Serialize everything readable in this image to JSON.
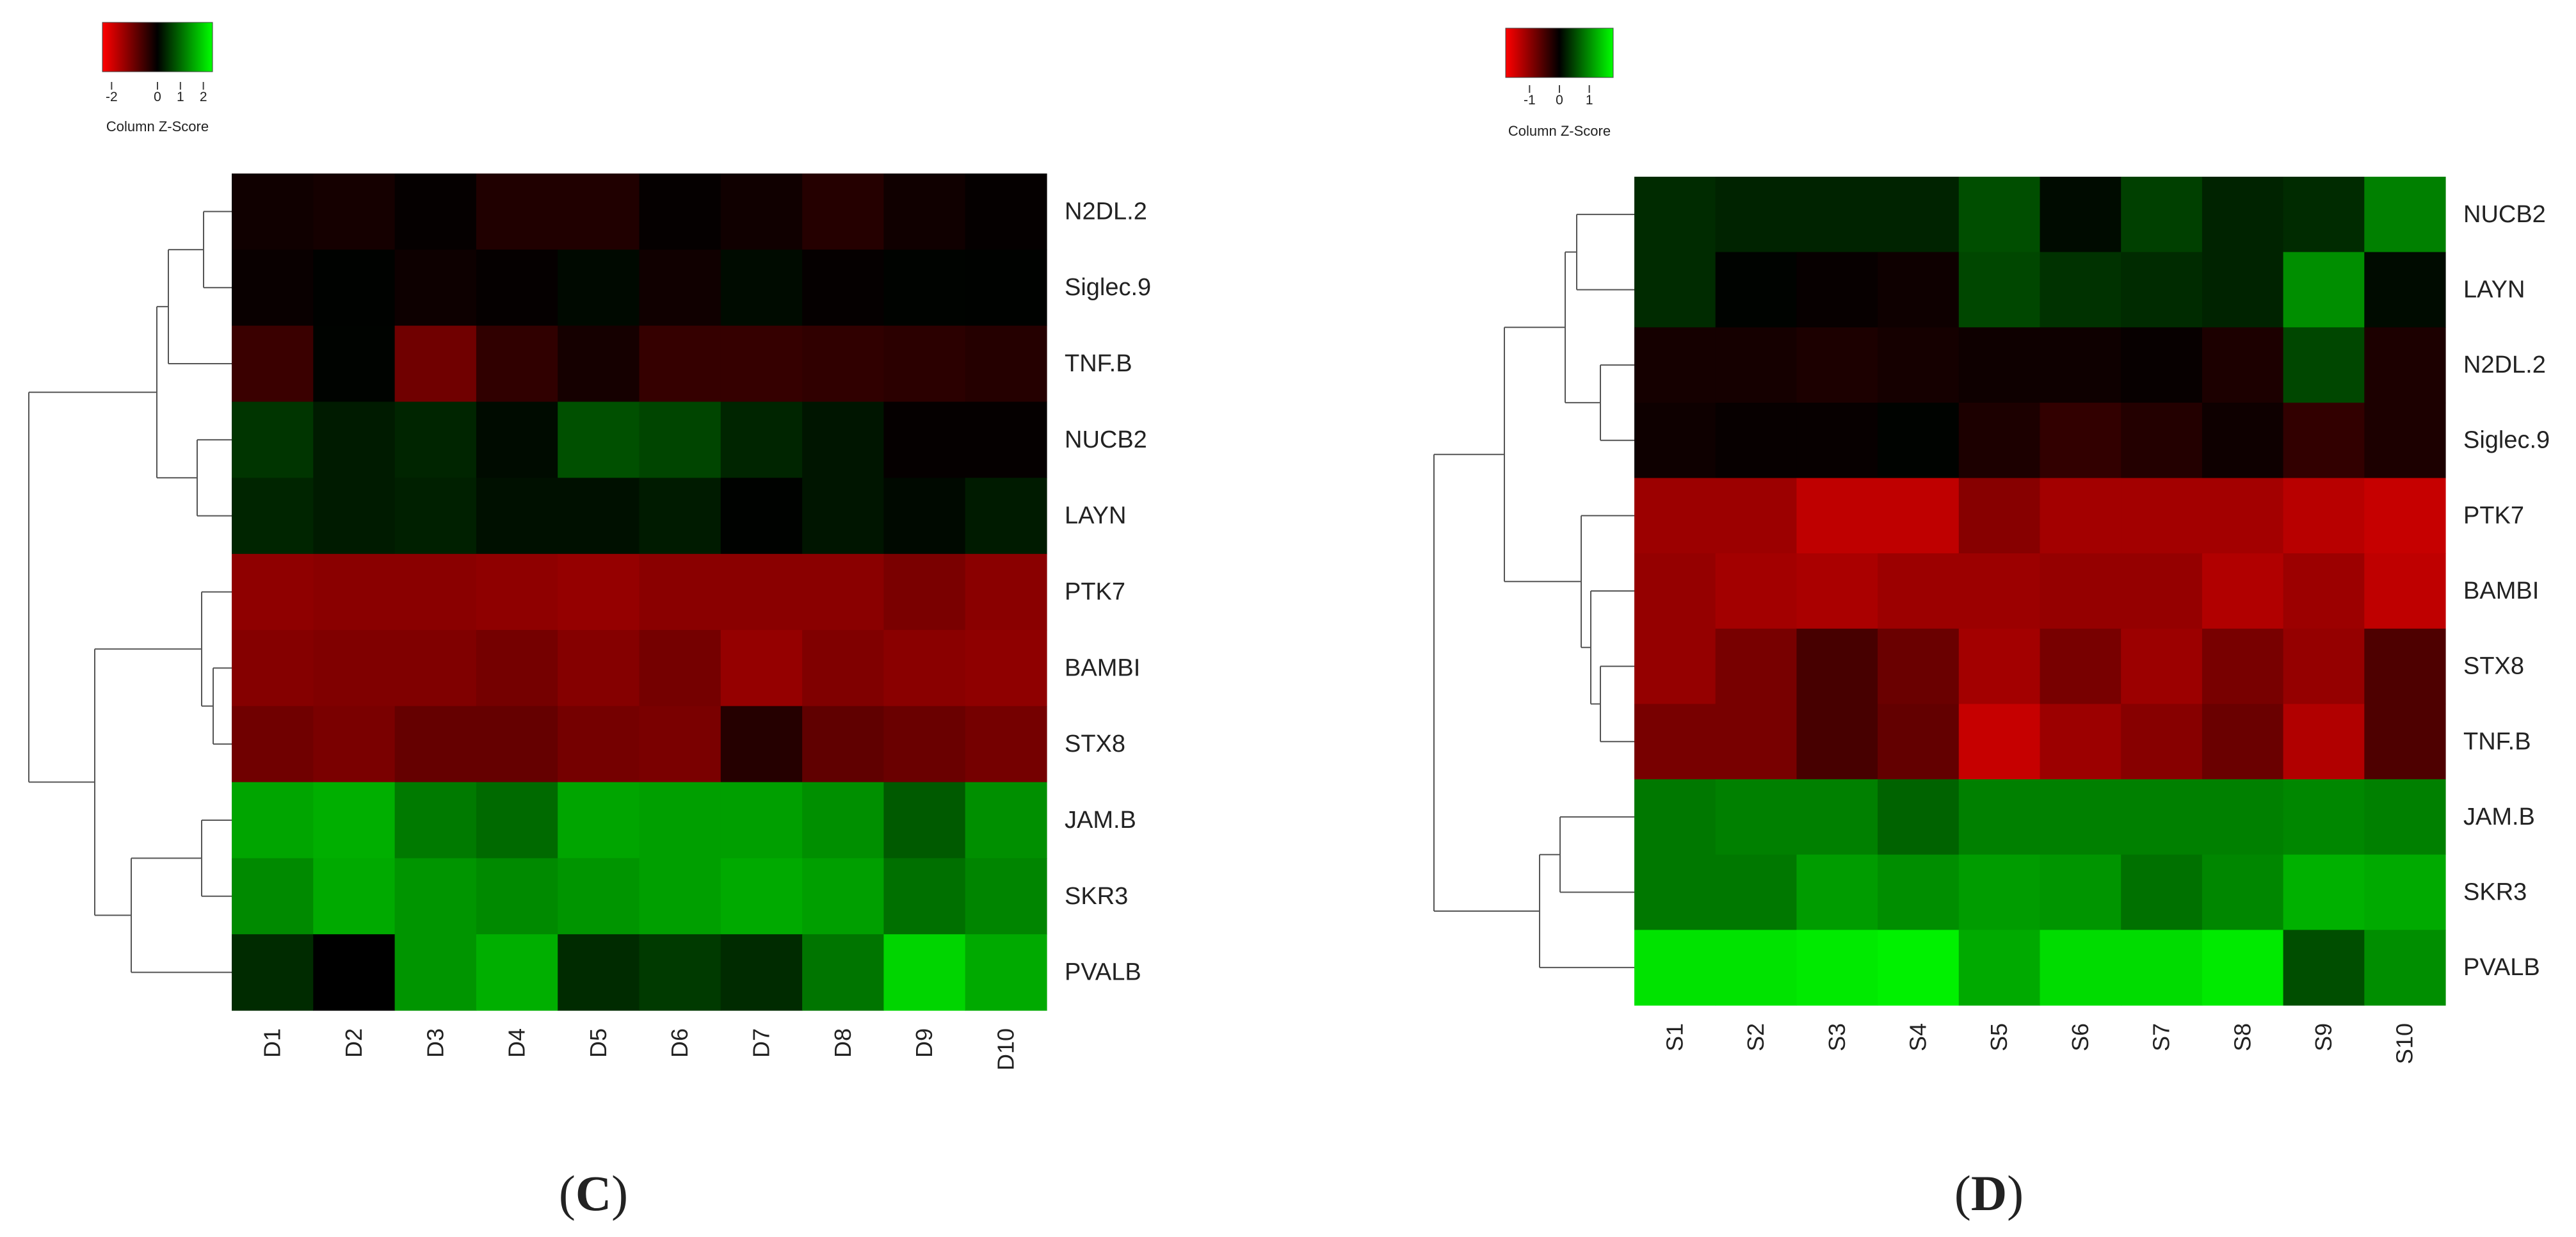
{
  "chart_data": [
    {
      "type": "heatmap",
      "panel_label": "C",
      "colorscale": {
        "low": "#ff0000",
        "mid": "#000000",
        "high": "#00ff00"
      },
      "legend": {
        "title": "Column Z-Score",
        "ticks": [
          "-2",
          "0",
          "1",
          "2"
        ],
        "range": [
          -2.4,
          2.4
        ],
        "tick_values": [
          -2,
          0,
          1,
          2
        ],
        "placement": "top-left"
      },
      "columns": [
        "D1",
        "D2",
        "D3",
        "D4",
        "D5",
        "D6",
        "D7",
        "D8",
        "D9",
        "D10"
      ],
      "rows": [
        "N2DL.2",
        "Siglec.9",
        "TNF.B",
        "NUCB2",
        "LAYN",
        "PTK7",
        "BAMBI",
        "STX8",
        "JAM.B",
        "SKR3",
        "PVALB"
      ],
      "values": [
        [
          -0.15,
          -0.2,
          -0.05,
          -0.3,
          -0.3,
          -0.05,
          -0.15,
          -0.35,
          -0.15,
          -0.05
        ],
        [
          -0.08,
          0.02,
          -0.12,
          -0.05,
          0.08,
          -0.15,
          0.1,
          -0.05,
          0.03,
          0.02
        ],
        [
          -0.55,
          0.03,
          -1.05,
          -0.45,
          -0.2,
          -0.5,
          -0.5,
          -0.45,
          -0.4,
          -0.35
        ],
        [
          0.5,
          0.25,
          0.35,
          0.1,
          0.75,
          0.65,
          0.35,
          0.2,
          -0.05,
          -0.05
        ],
        [
          0.35,
          0.25,
          0.3,
          0.15,
          0.15,
          0.25,
          0.02,
          0.2,
          0.08,
          0.25
        ],
        [
          -1.35,
          -1.3,
          -1.3,
          -1.35,
          -1.4,
          -1.3,
          -1.3,
          -1.3,
          -1.15,
          -1.3
        ],
        [
          -1.25,
          -1.2,
          -1.2,
          -1.1,
          -1.25,
          -1.1,
          -1.4,
          -1.2,
          -1.3,
          -1.35
        ],
        [
          -1.05,
          -1.15,
          -0.95,
          -0.95,
          -1.1,
          -1.15,
          -0.35,
          -0.9,
          -1.0,
          -1.1
        ],
        [
          1.55,
          1.65,
          1.15,
          1.0,
          1.55,
          1.5,
          1.5,
          1.35,
          0.85,
          1.35
        ],
        [
          1.3,
          1.6,
          1.4,
          1.3,
          1.4,
          1.5,
          1.6,
          1.5,
          1.05,
          1.25
        ],
        [
          0.4,
          0.0,
          1.4,
          1.65,
          0.4,
          0.55,
          0.4,
          1.1,
          2.0,
          1.6
        ]
      ]
    },
    {
      "type": "heatmap",
      "panel_label": "D",
      "colorscale": {
        "low": "#ff0000",
        "mid": "#000000",
        "high": "#00ff00"
      },
      "legend": {
        "title": "Column Z-Score",
        "ticks": [
          "-1",
          "0",
          "1"
        ],
        "range": [
          -1.8,
          1.8
        ],
        "tick_values": [
          -1,
          0,
          1
        ],
        "placement": "top-left"
      },
      "columns": [
        "S1",
        "S2",
        "S3",
        "S4",
        "S5",
        "S6",
        "S7",
        "S8",
        "S9",
        "S10"
      ],
      "rows": [
        "NUCB2",
        "LAYN",
        "N2DL.2",
        "Siglec.9",
        "PTK7",
        "BAMBI",
        "STX8",
        "TNF.B",
        "JAM.B",
        "SKR3",
        "PVALB"
      ],
      "values": [
        [
          0.3,
          0.25,
          0.25,
          0.25,
          0.55,
          0.08,
          0.45,
          0.25,
          0.3,
          0.9
        ],
        [
          0.3,
          0.02,
          -0.05,
          -0.1,
          0.5,
          0.35,
          0.3,
          0.25,
          1.0,
          0.08
        ],
        [
          -0.15,
          -0.15,
          -0.2,
          -0.15,
          -0.1,
          -0.1,
          -0.05,
          -0.2,
          0.5,
          -0.2
        ],
        [
          -0.1,
          -0.05,
          -0.05,
          0.02,
          -0.2,
          -0.35,
          -0.25,
          -0.1,
          -0.35,
          -0.2
        ],
        [
          -1.1,
          -1.1,
          -1.35,
          -1.35,
          -0.95,
          -1.15,
          -1.15,
          -1.15,
          -1.3,
          -1.4
        ],
        [
          -1.05,
          -1.15,
          -1.2,
          -1.1,
          -1.1,
          -1.05,
          -1.05,
          -1.25,
          -1.1,
          -1.35
        ],
        [
          -1.05,
          -0.85,
          -0.5,
          -0.75,
          -1.15,
          -0.85,
          -1.1,
          -0.85,
          -1.05,
          -0.55
        ],
        [
          -0.85,
          -0.85,
          -0.5,
          -0.7,
          -1.4,
          -1.1,
          -0.95,
          -0.75,
          -1.25,
          -0.55
        ],
        [
          0.85,
          0.9,
          0.9,
          0.7,
          0.9,
          0.9,
          0.9,
          0.9,
          0.95,
          0.9
        ],
        [
          0.85,
          0.85,
          1.1,
          1.0,
          1.1,
          1.05,
          0.8,
          0.95,
          1.25,
          1.2
        ],
        [
          1.6,
          1.6,
          1.65,
          1.7,
          1.2,
          1.55,
          1.55,
          1.65,
          0.55,
          1.0
        ]
      ]
    }
  ]
}
